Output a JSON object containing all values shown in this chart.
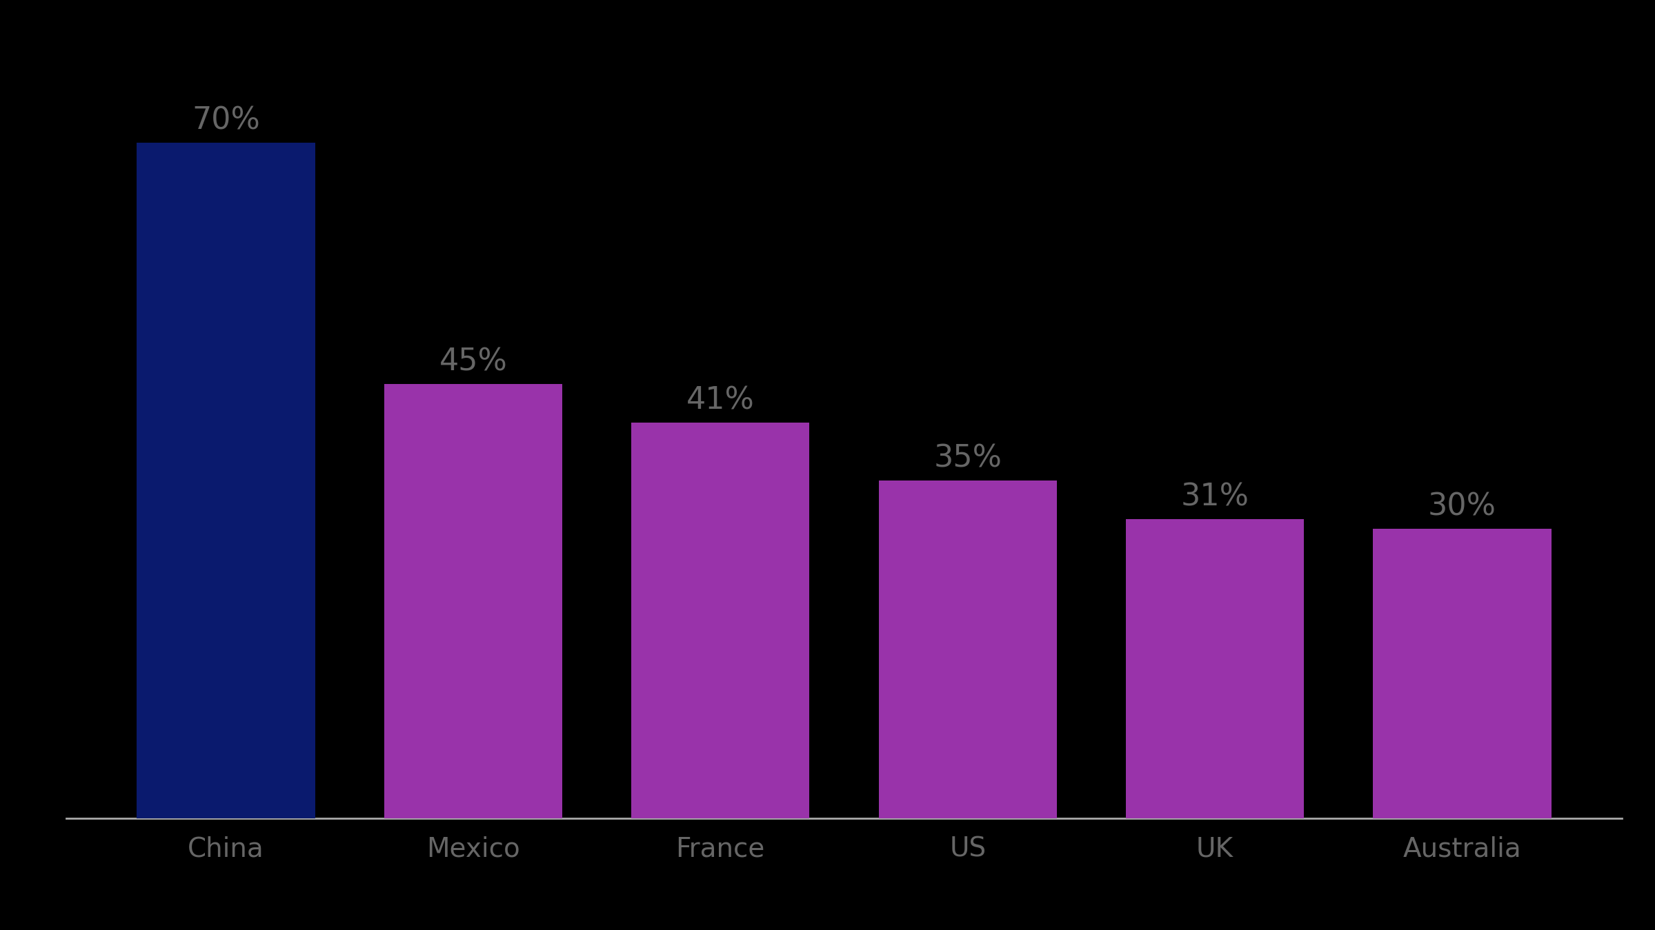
{
  "categories": [
    "China",
    "Mexico",
    "France",
    "US",
    "UK",
    "Australia"
  ],
  "values": [
    70,
    45,
    41,
    35,
    31,
    30
  ],
  "labels": [
    "70%",
    "45%",
    "41%",
    "35%",
    "31%",
    "30%"
  ],
  "bar_colors": [
    "#0a1a6e",
    "#9933aa",
    "#9933aa",
    "#9933aa",
    "#9933aa",
    "#9933aa"
  ],
  "background_color": "#000000",
  "text_color": "#666666",
  "label_fontsize": 32,
  "tick_fontsize": 28,
  "ylim": [
    0,
    80
  ],
  "bar_width": 0.72,
  "spine_color": "#aaaaaa"
}
